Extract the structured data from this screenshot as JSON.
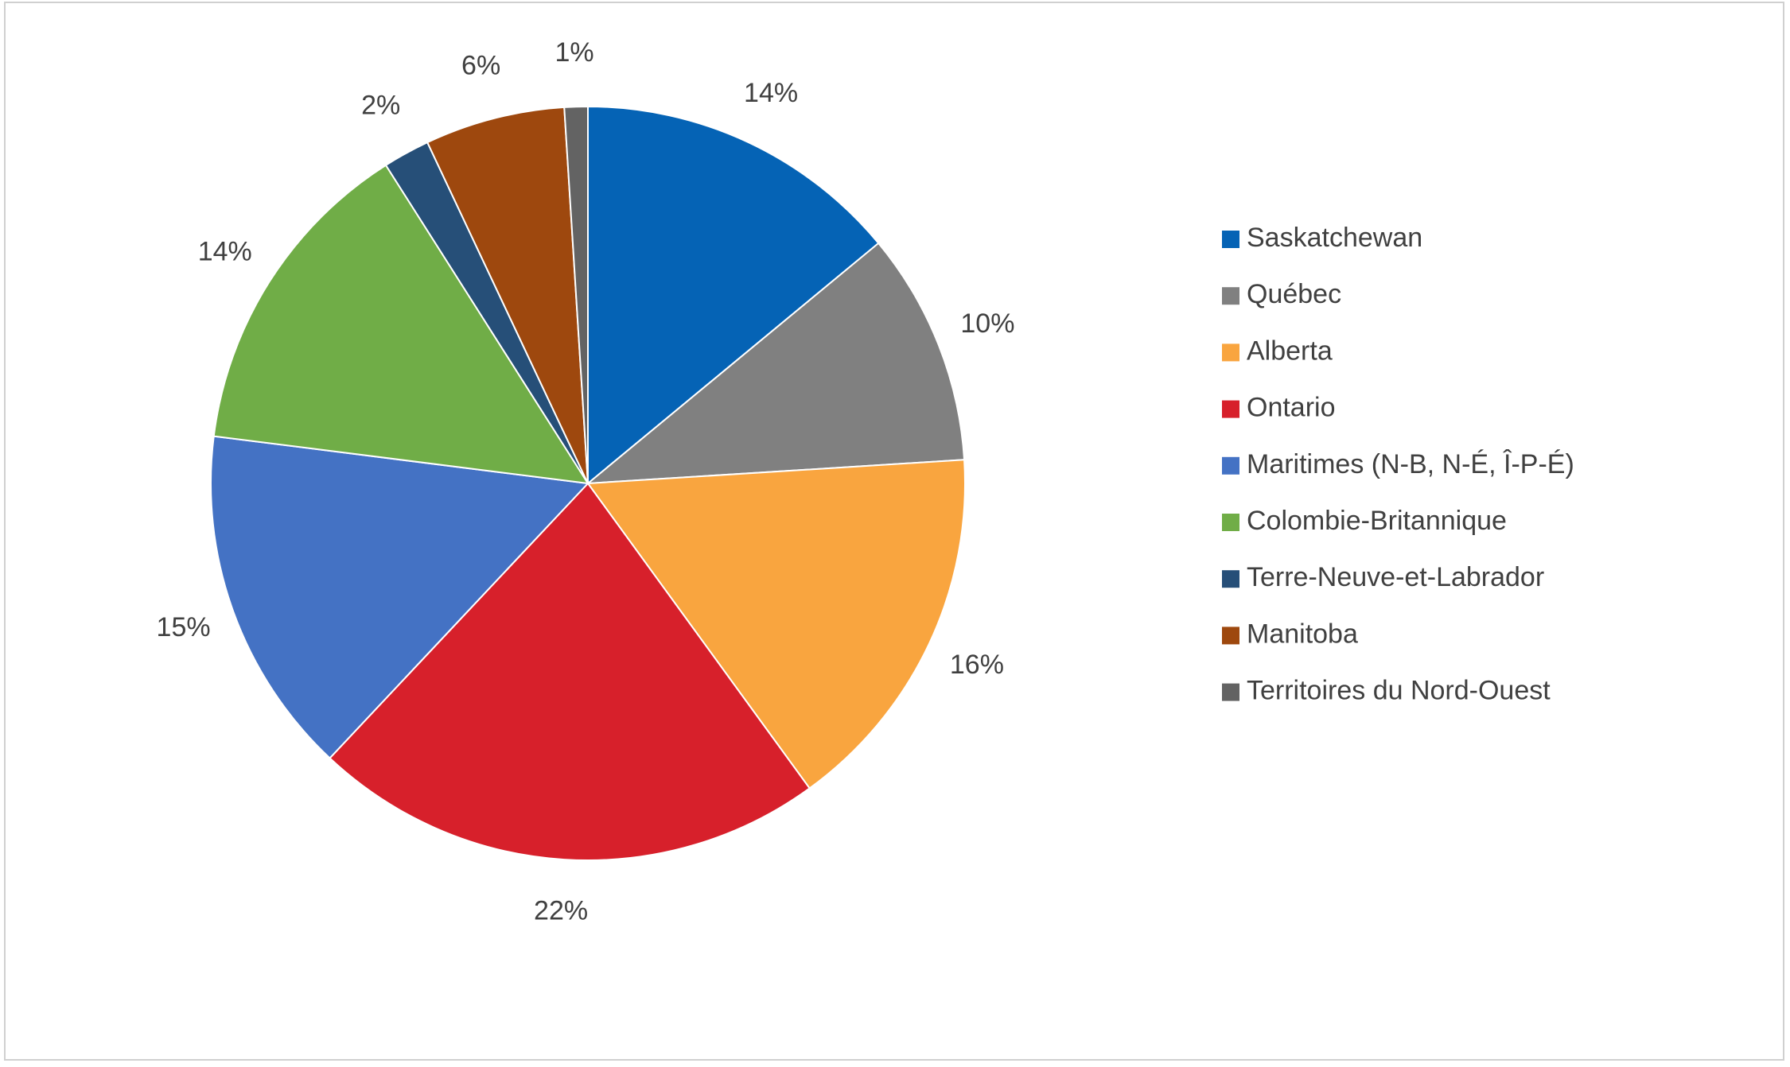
{
  "chart_data": {
    "type": "pie",
    "categories": [
      "Saskatchewan",
      "Québec",
      "Alberta",
      "Ontario",
      "Maritimes (N-B, N-É, Î-P-É)",
      "Colombie-Britannique",
      "Terre-Neuve-et-Labrador",
      "Manitoba",
      "Territoires du Nord-Ouest"
    ],
    "values": [
      14,
      10,
      16,
      22,
      15,
      14,
      2,
      6,
      1
    ],
    "value_labels": [
      "14%",
      "10%",
      "16%",
      "22%",
      "15%",
      "14%",
      "2%",
      "6%",
      "1%"
    ],
    "colors": [
      "#0563b5",
      "#808080",
      "#f9a53f",
      "#d7202b",
      "#4472c4",
      "#70ad47",
      "#264f78",
      "#9e480e",
      "#636363"
    ],
    "legend": "right"
  }
}
